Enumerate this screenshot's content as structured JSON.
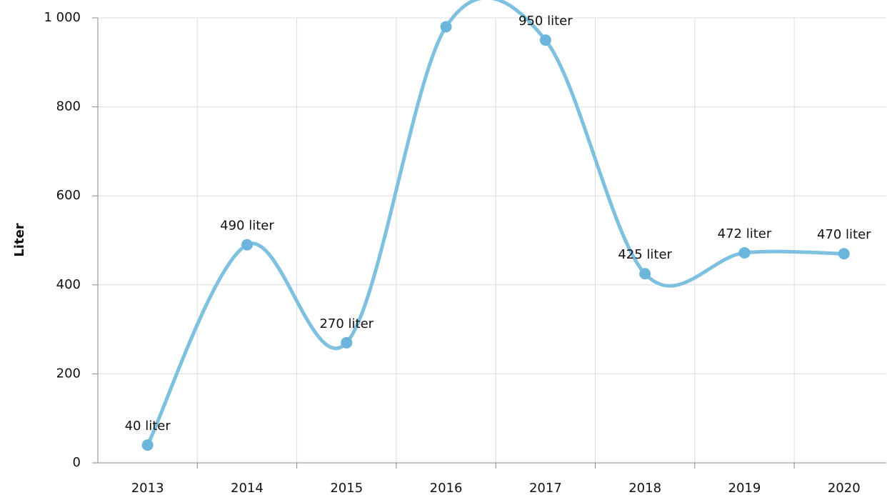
{
  "chart_data": {
    "type": "line",
    "y_label": "Liter",
    "categories": [
      "2013",
      "2014",
      "2015",
      "2016",
      "2017",
      "2018",
      "2019",
      "2020"
    ],
    "values": [
      40,
      490,
      270,
      980,
      950,
      425,
      472,
      470
    ],
    "value_labels": [
      "40 liter",
      "490 liter",
      "270 liter",
      null,
      "950 liter",
      "425 liter",
      "472 liter",
      "470 liter"
    ],
    "color": "#7ec0e0",
    "ylim": [
      0,
      1000
    ],
    "yticks": [
      0,
      200,
      400,
      600,
      800,
      {
        "value": 1000,
        "label": "1 000"
      }
    ],
    "grid": true
  }
}
